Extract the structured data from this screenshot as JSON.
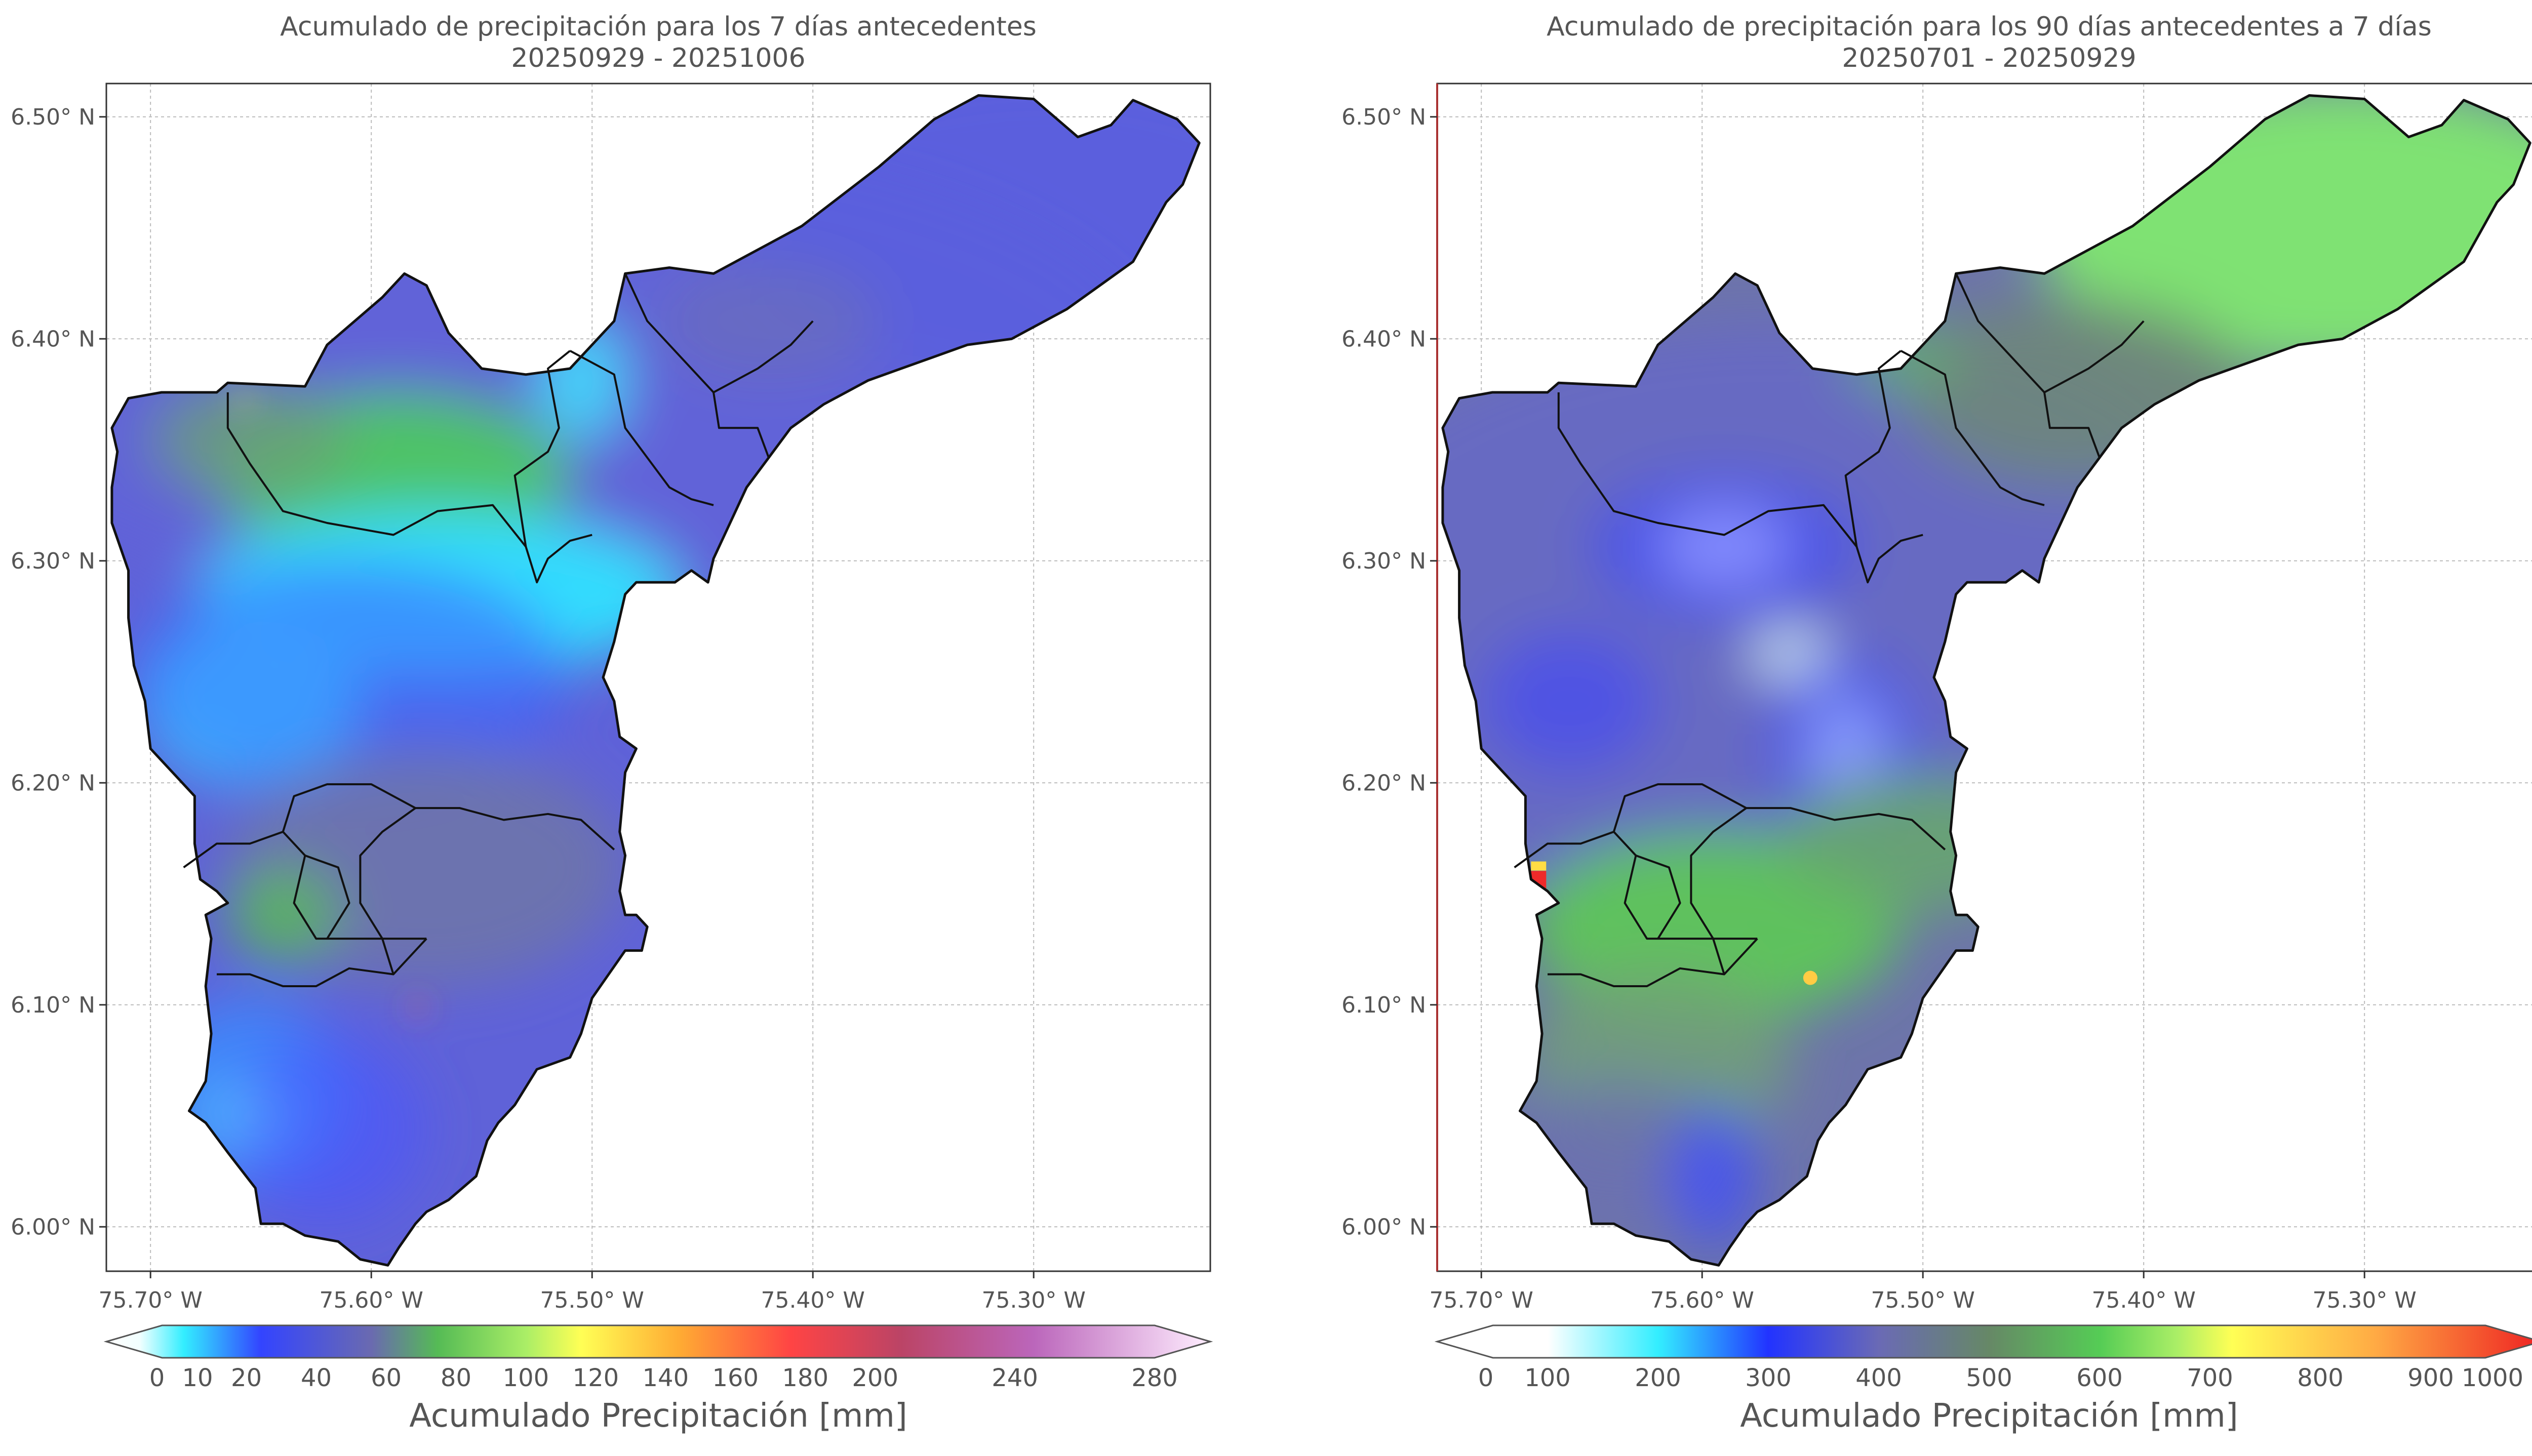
{
  "chart_data": [
    {
      "type": "heatmap",
      "title": "Acumulado de precipitación para los 7 días antecedentes",
      "subtitle": "20250929 - 20251006",
      "colorbar_label": "Acumulado Precipitación [mm]",
      "colorbar_ticks": [
        "0",
        "10",
        "20",
        "40",
        "60",
        "80",
        "100",
        "120",
        "140",
        "160",
        "180",
        "200",
        "240",
        "280"
      ],
      "x_ticks": [
        "75.70° W",
        "75.60° W",
        "75.50° W",
        "75.40° W",
        "75.30° W"
      ],
      "y_ticks": [
        "6.50° N",
        "6.40° N",
        "6.30° N",
        "6.20° N",
        "6.10° N",
        "6.00° N"
      ],
      "xlim": [
        -75.72,
        -75.22
      ],
      "ylim": [
        5.98,
        6.515
      ],
      "grid": true,
      "colors": {
        "low": "#e0ffff",
        "mid_low": "#33e8ff",
        "mid": "#5a5fe0",
        "mid_high": "#6b8c7e",
        "high": "#66cc4d",
        "peak": "#ff4040"
      }
    },
    {
      "type": "heatmap",
      "title": "Acumulado de precipitación para los 90 días antecedentes a 7 días",
      "subtitle": "20250701 - 20250929",
      "colorbar_label": "Acumulado Precipitación [mm]",
      "colorbar_ticks": [
        "0",
        "100",
        "200",
        "300",
        "400",
        "500",
        "600",
        "700",
        "800",
        "900",
        "1000"
      ],
      "x_ticks": [
        "75.70° W",
        "75.60° W",
        "75.50° W",
        "75.40° W",
        "75.30° W"
      ],
      "y_ticks": [
        "6.50° N",
        "6.40° N",
        "6.30° N",
        "6.20° N",
        "6.10° N",
        "6.00° N"
      ],
      "xlim": [
        -75.72,
        -75.22
      ],
      "ylim": [
        5.98,
        6.515
      ],
      "grid": true,
      "colors": {
        "low": "#ffffff",
        "mid_low": "#33e8ff",
        "mid": "#4a55ee",
        "mid_high": "#6b8c7e",
        "high": "#66dd55",
        "peak": "#ee3333"
      }
    }
  ]
}
